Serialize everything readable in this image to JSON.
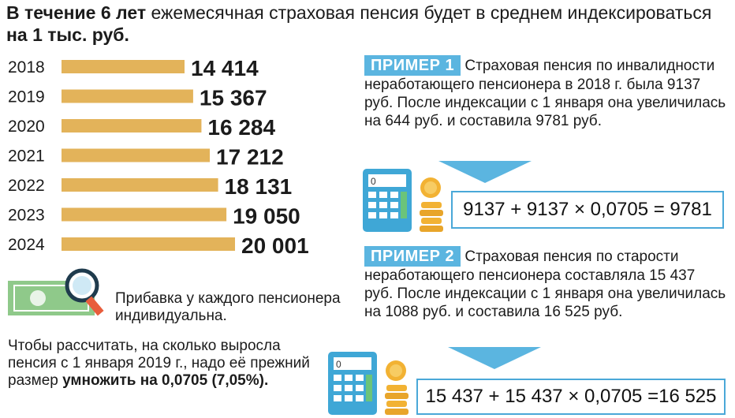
{
  "header": {
    "part1": "В течение 6 лет",
    "part2": " ежемесячная страховая пенсия будет в среднем индексироваться ",
    "part3": "на 1 тыс. руб."
  },
  "chart_data": {
    "type": "bar",
    "orientation": "horizontal",
    "categories": [
      "2018",
      "2019",
      "2020",
      "2021",
      "2022",
      "2023",
      "2024"
    ],
    "values": [
      14414,
      15367,
      16284,
      17212,
      18131,
      19050,
      20001
    ],
    "value_labels": [
      "14 414",
      "15 367",
      "16 284",
      "17 212",
      "18 131",
      "19 050",
      "20 001"
    ],
    "bar_color": "#e3b35a",
    "title": "",
    "xlabel": "",
    "ylabel": ""
  },
  "notes": {
    "individual": "Прибавка у каждого пенсионера индивидуальна.",
    "calc_part1": "Чтобы рассчитать, на сколько выросла пенсия с 1 января 2019 г., надо её прежний размер ",
    "calc_part2": "умножить на 0,0705 (7,05%)."
  },
  "examples": [
    {
      "badge": "ПРИМЕР 1",
      "text": "Страховая пенсия по инвалидности неработающего пенсионера в 2018 г. была 9137 руб. После индексации с 1 января она увеличилась на 644 руб. и составила 9781 руб.",
      "formula": "9137 + 9137 × 0,0705 = 9781"
    },
    {
      "badge": "ПРИМЕР 2",
      "text": "Страховая пенсия по старости неработающего пенсионера составляла 15 437 руб. После индексации с 1 января она увеличилась на 1088 руб. и составила 16 525 руб.",
      "formula": "15 437 + 15 437 × 0,0705 =16 525"
    }
  ],
  "icons": {
    "money": "banknote-magnifier-icon",
    "calculator": "calculator-icon",
    "coins": "coins-icon",
    "arrow": "down-arrow-icon"
  },
  "colors": {
    "accent_blue": "#5bb5e0",
    "bar": "#e3b35a",
    "money_green": "#8fc98a"
  }
}
